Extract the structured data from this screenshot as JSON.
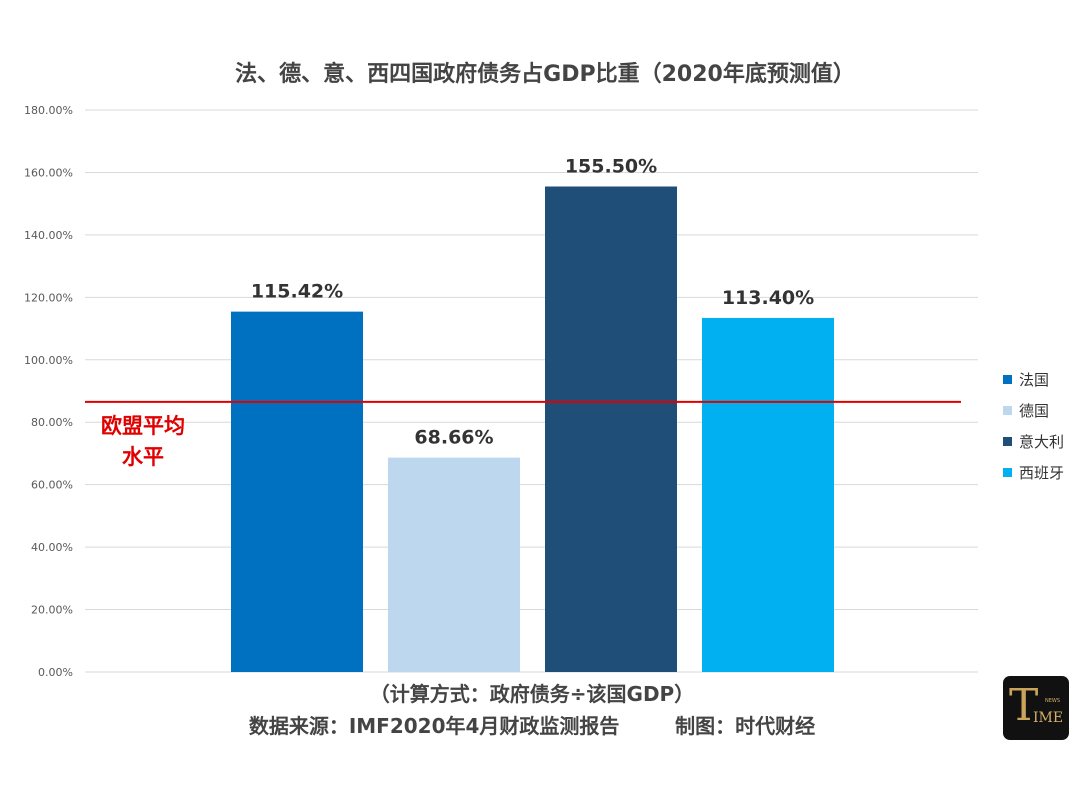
{
  "chart_data": {
    "type": "bar",
    "title": "法、德、意、西四国政府债务占GDP比重（2020年底预测值）",
    "categories": [
      "法国",
      "德国",
      "意大利",
      "西班牙"
    ],
    "values": [
      115.42,
      68.66,
      155.5,
      113.4
    ],
    "value_labels": [
      "115.42%",
      "68.66%",
      "155.50%",
      "113.40%"
    ],
    "colors": [
      "#0070c0",
      "#bdd7ee",
      "#1f4e79",
      "#00b0f0"
    ],
    "ylim": [
      0,
      180
    ],
    "yticks": [
      "0.00%",
      "20.00%",
      "40.00%",
      "60.00%",
      "80.00%",
      "100.00%",
      "120.00%",
      "140.00%",
      "160.00%",
      "180.00%"
    ],
    "grid": true,
    "legend_position": "right",
    "reference_line": {
      "value": 86.5,
      "color": "#e00000",
      "label_lines": [
        "欧盟平均",
        "水平"
      ]
    }
  },
  "footnote": {
    "line1": "（计算方式：政府债务÷该国GDP）",
    "line2": "数据来源：IMF2020年4月财政监测报告        制图：时代财经"
  },
  "logo": {
    "text": "TIME",
    "small_text": "NEWS"
  }
}
